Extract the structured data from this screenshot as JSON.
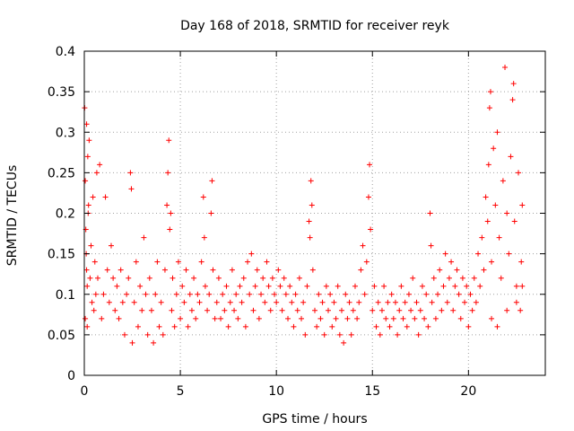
{
  "chart_data": {
    "type": "scatter",
    "title": "Day 168 of 2018, SRMTID for receiver reyk",
    "xlabel": "GPS time / hours",
    "ylabel": "SRMTID / TECUs",
    "xlim": [
      0,
      24
    ],
    "ylim": [
      0,
      0.4
    ],
    "xticks": [
      0,
      5,
      10,
      15,
      20
    ],
    "xtick_labels": [
      "0",
      "5",
      "10",
      "15",
      "20"
    ],
    "yticks": [
      0,
      0.05,
      0.1,
      0.15,
      0.2,
      0.25,
      0.3,
      0.35,
      0.4
    ],
    "ytick_labels": [
      "0",
      "0.05",
      "0.1",
      "0.15",
      "0.2",
      "0.25",
      "0.3",
      "0.35",
      "0.4"
    ],
    "grid": true,
    "marker": "+",
    "color": "#ff0000",
    "series": [
      {
        "name": "SRMTID",
        "points": [
          [
            0.02,
            0.33
          ],
          [
            0.05,
            0.24
          ],
          [
            0.08,
            0.18
          ],
          [
            0.1,
            0.15
          ],
          [
            0.12,
            0.13
          ],
          [
            0.15,
            0.11
          ],
          [
            0.18,
            0.27
          ],
          [
            0.2,
            0.2
          ],
          [
            0.25,
            0.29
          ],
          [
            0.3,
            0.12
          ],
          [
            0.35,
            0.16
          ],
          [
            0.4,
            0.09
          ],
          [
            0.45,
            0.22
          ],
          [
            0.5,
            0.08
          ],
          [
            0.55,
            0.14
          ],
          [
            0.6,
            0.1
          ],
          [
            0.65,
            0.25
          ],
          [
            0.7,
            0.12
          ],
          [
            0.8,
            0.26
          ],
          [
            0.9,
            0.07
          ],
          [
            1.0,
            0.1
          ],
          [
            1.1,
            0.22
          ],
          [
            1.2,
            0.13
          ],
          [
            0.12,
            0.31
          ],
          [
            0.22,
            0.21
          ],
          [
            0.05,
            0.07
          ],
          [
            0.15,
            0.06
          ],
          [
            1.3,
            0.09
          ],
          [
            1.4,
            0.16
          ],
          [
            1.5,
            0.12
          ],
          [
            1.6,
            0.08
          ],
          [
            1.7,
            0.11
          ],
          [
            1.8,
            0.07
          ],
          [
            1.9,
            0.13
          ],
          [
            2.0,
            0.09
          ],
          [
            2.1,
            0.05
          ],
          [
            2.2,
            0.1
          ],
          [
            2.3,
            0.12
          ],
          [
            2.4,
            0.25
          ],
          [
            2.45,
            0.23
          ],
          [
            2.5,
            0.04
          ],
          [
            2.6,
            0.09
          ],
          [
            2.7,
            0.14
          ],
          [
            2.8,
            0.06
          ],
          [
            2.9,
            0.11
          ],
          [
            3.0,
            0.08
          ],
          [
            3.1,
            0.17
          ],
          [
            3.2,
            0.1
          ],
          [
            3.3,
            0.05
          ],
          [
            3.4,
            0.12
          ],
          [
            3.5,
            0.08
          ],
          [
            3.6,
            0.04
          ],
          [
            3.7,
            0.1
          ],
          [
            3.8,
            0.14
          ],
          [
            3.9,
            0.06
          ],
          [
            4.0,
            0.09
          ],
          [
            4.1,
            0.05
          ],
          [
            4.2,
            0.13
          ],
          [
            4.3,
            0.21
          ],
          [
            4.35,
            0.25
          ],
          [
            4.4,
            0.29
          ],
          [
            4.45,
            0.18
          ],
          [
            4.5,
            0.2
          ],
          [
            4.55,
            0.08
          ],
          [
            4.6,
            0.12
          ],
          [
            4.7,
            0.06
          ],
          [
            4.8,
            0.1
          ],
          [
            4.9,
            0.14
          ],
          [
            5.0,
            0.07
          ],
          [
            5.1,
            0.11
          ],
          [
            5.2,
            0.09
          ],
          [
            5.3,
            0.13
          ],
          [
            5.4,
            0.06
          ],
          [
            5.5,
            0.1
          ],
          [
            5.6,
            0.08
          ],
          [
            5.7,
            0.12
          ],
          [
            5.8,
            0.07
          ],
          [
            5.9,
            0.1
          ],
          [
            6.0,
            0.09
          ],
          [
            6.1,
            0.14
          ],
          [
            6.2,
            0.22
          ],
          [
            6.25,
            0.17
          ],
          [
            6.3,
            0.11
          ],
          [
            6.4,
            0.08
          ],
          [
            6.5,
            0.1
          ],
          [
            6.6,
            0.2
          ],
          [
            6.65,
            0.24
          ],
          [
            6.7,
            0.13
          ],
          [
            6.8,
            0.07
          ],
          [
            6.9,
            0.09
          ],
          [
            7.0,
            0.12
          ],
          [
            7.1,
            0.07
          ],
          [
            7.2,
            0.1
          ],
          [
            7.3,
            0.08
          ],
          [
            7.4,
            0.11
          ],
          [
            7.5,
            0.06
          ],
          [
            7.6,
            0.09
          ],
          [
            7.7,
            0.13
          ],
          [
            7.8,
            0.08
          ],
          [
            7.9,
            0.1
          ],
          [
            8.0,
            0.07
          ],
          [
            8.1,
            0.11
          ],
          [
            8.2,
            0.09
          ],
          [
            8.3,
            0.12
          ],
          [
            8.4,
            0.06
          ],
          [
            8.5,
            0.14
          ],
          [
            8.6,
            0.1
          ],
          [
            8.7,
            0.15
          ],
          [
            8.8,
            0.08
          ],
          [
            8.9,
            0.11
          ],
          [
            9.0,
            0.13
          ],
          [
            9.1,
            0.07
          ],
          [
            9.2,
            0.1
          ],
          [
            9.3,
            0.12
          ],
          [
            9.4,
            0.09
          ],
          [
            9.5,
            0.14
          ],
          [
            9.6,
            0.11
          ],
          [
            9.7,
            0.08
          ],
          [
            9.8,
            0.12
          ],
          [
            9.9,
            0.1
          ],
          [
            10.0,
            0.09
          ],
          [
            10.1,
            0.13
          ],
          [
            10.2,
            0.11
          ],
          [
            10.3,
            0.08
          ],
          [
            10.4,
            0.12
          ],
          [
            10.5,
            0.1
          ],
          [
            10.6,
            0.07
          ],
          [
            10.7,
            0.11
          ],
          [
            10.8,
            0.09
          ],
          [
            10.9,
            0.06
          ],
          [
            11.0,
            0.1
          ],
          [
            11.1,
            0.08
          ],
          [
            11.2,
            0.12
          ],
          [
            11.3,
            0.07
          ],
          [
            11.4,
            0.09
          ],
          [
            11.5,
            0.05
          ],
          [
            11.6,
            0.11
          ],
          [
            11.7,
            0.19
          ],
          [
            11.75,
            0.17
          ],
          [
            11.8,
            0.24
          ],
          [
            11.85,
            0.21
          ],
          [
            11.9,
            0.13
          ],
          [
            12.0,
            0.08
          ],
          [
            12.1,
            0.06
          ],
          [
            12.2,
            0.1
          ],
          [
            12.3,
            0.07
          ],
          [
            12.4,
            0.09
          ],
          [
            12.5,
            0.05
          ],
          [
            12.6,
            0.11
          ],
          [
            12.7,
            0.08
          ],
          [
            12.8,
            0.1
          ],
          [
            12.9,
            0.06
          ],
          [
            13.0,
            0.09
          ],
          [
            13.1,
            0.07
          ],
          [
            13.2,
            0.11
          ],
          [
            13.3,
            0.05
          ],
          [
            13.4,
            0.08
          ],
          [
            13.5,
            0.04
          ],
          [
            13.6,
            0.1
          ],
          [
            13.7,
            0.07
          ],
          [
            13.8,
            0.09
          ],
          [
            13.9,
            0.05
          ],
          [
            14.0,
            0.08
          ],
          [
            14.1,
            0.11
          ],
          [
            14.2,
            0.07
          ],
          [
            14.3,
            0.09
          ],
          [
            14.4,
            0.13
          ],
          [
            14.5,
            0.16
          ],
          [
            14.6,
            0.1
          ],
          [
            14.7,
            0.14
          ],
          [
            14.8,
            0.22
          ],
          [
            14.85,
            0.26
          ],
          [
            14.9,
            0.18
          ],
          [
            15.0,
            0.08
          ],
          [
            15.1,
            0.11
          ],
          [
            15.2,
            0.06
          ],
          [
            15.3,
            0.09
          ],
          [
            15.4,
            0.05
          ],
          [
            15.5,
            0.08
          ],
          [
            15.6,
            0.11
          ],
          [
            15.7,
            0.07
          ],
          [
            15.8,
            0.09
          ],
          [
            15.9,
            0.06
          ],
          [
            16.0,
            0.1
          ],
          [
            16.1,
            0.07
          ],
          [
            16.2,
            0.09
          ],
          [
            16.3,
            0.05
          ],
          [
            16.4,
            0.08
          ],
          [
            16.5,
            0.11
          ],
          [
            16.6,
            0.07
          ],
          [
            16.7,
            0.09
          ],
          [
            16.8,
            0.06
          ],
          [
            16.9,
            0.1
          ],
          [
            17.0,
            0.08
          ],
          [
            17.1,
            0.12
          ],
          [
            17.2,
            0.07
          ],
          [
            17.3,
            0.09
          ],
          [
            17.4,
            0.05
          ],
          [
            17.5,
            0.08
          ],
          [
            17.6,
            0.11
          ],
          [
            17.7,
            0.07
          ],
          [
            17.8,
            0.1
          ],
          [
            17.9,
            0.06
          ],
          [
            18.0,
            0.2
          ],
          [
            18.05,
            0.16
          ],
          [
            18.1,
            0.09
          ],
          [
            18.2,
            0.12
          ],
          [
            18.3,
            0.07
          ],
          [
            18.4,
            0.1
          ],
          [
            18.5,
            0.13
          ],
          [
            18.6,
            0.08
          ],
          [
            18.7,
            0.11
          ],
          [
            18.8,
            0.15
          ],
          [
            18.9,
            0.09
          ],
          [
            19.0,
            0.12
          ],
          [
            19.1,
            0.14
          ],
          [
            19.2,
            0.08
          ],
          [
            19.3,
            0.11
          ],
          [
            19.4,
            0.13
          ],
          [
            19.5,
            0.1
          ],
          [
            19.6,
            0.07
          ],
          [
            19.7,
            0.12
          ],
          [
            19.8,
            0.09
          ],
          [
            19.9,
            0.11
          ],
          [
            20.0,
            0.06
          ],
          [
            20.1,
            0.1
          ],
          [
            20.2,
            0.08
          ],
          [
            20.3,
            0.12
          ],
          [
            20.4,
            0.09
          ],
          [
            20.5,
            0.15
          ],
          [
            20.6,
            0.11
          ],
          [
            20.7,
            0.17
          ],
          [
            20.8,
            0.13
          ],
          [
            20.9,
            0.22
          ],
          [
            21.0,
            0.19
          ],
          [
            21.05,
            0.26
          ],
          [
            21.1,
            0.33
          ],
          [
            21.15,
            0.35
          ],
          [
            21.2,
            0.14
          ],
          [
            21.3,
            0.28
          ],
          [
            21.4,
            0.21
          ],
          [
            21.5,
            0.3
          ],
          [
            21.6,
            0.17
          ],
          [
            21.7,
            0.12
          ],
          [
            21.8,
            0.24
          ],
          [
            21.9,
            0.38
          ],
          [
            22.0,
            0.2
          ],
          [
            22.1,
            0.15
          ],
          [
            22.2,
            0.27
          ],
          [
            22.3,
            0.34
          ],
          [
            22.35,
            0.36
          ],
          [
            22.4,
            0.19
          ],
          [
            22.5,
            0.11
          ],
          [
            22.6,
            0.25
          ],
          [
            22.7,
            0.08
          ],
          [
            22.75,
            0.14
          ],
          [
            22.8,
            0.21
          ],
          [
            21.2,
            0.07
          ],
          [
            21.5,
            0.06
          ],
          [
            22.0,
            0.08
          ],
          [
            22.5,
            0.09
          ],
          [
            22.8,
            0.11
          ]
        ]
      }
    ]
  }
}
